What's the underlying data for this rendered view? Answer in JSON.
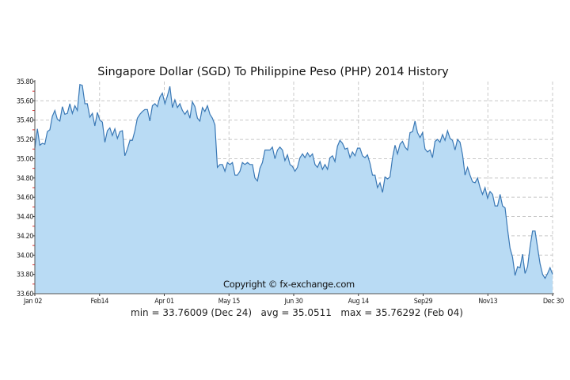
{
  "chart_data": {
    "type": "area",
    "title": "Singapore Dollar (SGD) To Philippine Peso (PHP) 2014 History",
    "xlabel": "",
    "ylabel": "",
    "ylim": [
      33.6,
      35.8
    ],
    "yticks": [
      "35.80",
      "35.60",
      "35.40",
      "35.20",
      "35.00",
      "34.80",
      "34.60",
      "34.40",
      "34.20",
      "34.00",
      "33.80",
      "33.60"
    ],
    "xticks": [
      "Jan 02",
      "Feb14",
      "Apr 01",
      "May 15",
      "Jun 30",
      "Aug 14",
      "Sep29",
      "Nov13",
      "Dec 30"
    ],
    "grid": true,
    "line_color": "#3a78b5",
    "fill_color": "#b9dbf4",
    "values": [
      35.11,
      35.31,
      35.14,
      35.16,
      35.15,
      35.28,
      35.3,
      35.44,
      35.5,
      35.41,
      35.39,
      35.54,
      35.46,
      35.47,
      35.57,
      35.47,
      35.55,
      35.5,
      35.77,
      35.76,
      35.57,
      35.57,
      35.43,
      35.47,
      35.34,
      35.48,
      35.4,
      35.38,
      35.17,
      35.29,
      35.32,
      35.24,
      35.31,
      35.21,
      35.28,
      35.29,
      35.03,
      35.1,
      35.19,
      35.19,
      35.29,
      35.42,
      35.46,
      35.49,
      35.51,
      35.51,
      35.39,
      35.55,
      35.57,
      35.54,
      35.64,
      35.68,
      35.57,
      35.65,
      35.75,
      35.53,
      35.61,
      35.53,
      35.57,
      35.5,
      35.46,
      35.5,
      35.42,
      35.59,
      35.54,
      35.42,
      35.39,
      35.53,
      35.49,
      35.55,
      35.46,
      35.42,
      35.35,
      34.91,
      34.94,
      34.94,
      34.87,
      34.96,
      34.94,
      34.96,
      34.83,
      34.83,
      34.87,
      34.96,
      34.94,
      34.96,
      34.94,
      34.94,
      34.8,
      34.77,
      34.9,
      34.96,
      35.09,
      35.09,
      35.09,
      35.12,
      35.0,
      35.09,
      35.12,
      35.09,
      34.98,
      35.04,
      34.94,
      34.92,
      34.87,
      34.91,
      35.01,
      35.05,
      35.01,
      35.06,
      35.02,
      35.05,
      34.94,
      34.91,
      34.97,
      34.89,
      34.94,
      34.89,
      35.01,
      35.03,
      34.97,
      35.13,
      35.19,
      35.16,
      35.1,
      35.11,
      35.01,
      35.07,
      35.03,
      35.11,
      35.11,
      35.03,
      35.01,
      35.04,
      34.95,
      34.83,
      34.83,
      34.7,
      34.75,
      34.65,
      34.81,
      34.79,
      34.81,
      35.01,
      35.14,
      35.05,
      35.15,
      35.18,
      35.12,
      35.09,
      35.27,
      35.28,
      35.39,
      35.27,
      35.22,
      35.27,
      35.1,
      35.07,
      35.09,
      35.01,
      35.18,
      35.2,
      35.17,
      35.25,
      35.19,
      35.29,
      35.21,
      35.19,
      35.09,
      35.2,
      35.17,
      35.04,
      34.83,
      34.91,
      34.83,
      34.76,
      34.75,
      34.8,
      34.7,
      34.63,
      34.7,
      34.59,
      34.66,
      34.63,
      34.51,
      34.51,
      34.63,
      34.51,
      34.49,
      34.27,
      34.07,
      33.98,
      33.79,
      33.88,
      33.87,
      34.01,
      33.81,
      33.88,
      34.09,
      34.25,
      34.25,
      34.08,
      33.91,
      33.8,
      33.76,
      33.81,
      33.87,
      33.8
    ],
    "annotations": {
      "copyright": "Copyright © fx-exchange.com",
      "stats": "min = 33.76009 (Dec 24)   avg = 35.0511   max = 35.76292 (Feb 04)"
    }
  }
}
